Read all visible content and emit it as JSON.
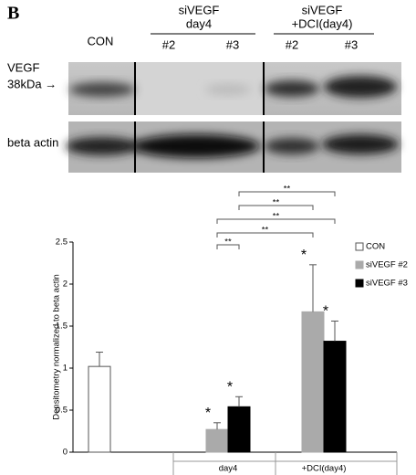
{
  "figure": {
    "panel": "B",
    "lanes": [
      "CON",
      "#2",
      "#3",
      "#2",
      "#3"
    ],
    "groups": [
      [
        "siVEGF",
        "day4"
      ],
      [
        "siVEGF",
        "+DCI(day4)"
      ]
    ],
    "rows": [
      "VEGF",
      "38kDa →",
      "beta actin"
    ]
  },
  "chart_data": {
    "type": "bar",
    "ylabel": "Densitometry normalized to beta actin",
    "categories": [
      null,
      "day4",
      "+DCI(day4)"
    ],
    "series": [
      {
        "name": "CON",
        "color": "#ffffff",
        "values": [
          1.02,
          null,
          null
        ],
        "errors": [
          0.17,
          null,
          null
        ]
      },
      {
        "name": "siVEGF #2",
        "color": "#aaaaaa",
        "values": [
          null,
          0.27,
          1.67
        ],
        "errors": [
          null,
          0.08,
          0.56
        ]
      },
      {
        "name": "siVEGF #3",
        "color": "#000000",
        "values": [
          null,
          0.54,
          1.32
        ],
        "errors": [
          null,
          0.12,
          0.24
        ]
      }
    ],
    "ylim": [
      0,
      2.5
    ],
    "yticks": [
      0,
      0.5,
      1,
      1.5,
      2,
      2.5
    ],
    "annotations": [
      "*",
      "*",
      "*",
      "*",
      "**",
      "**",
      "**",
      "**",
      "**"
    ],
    "legend": "right"
  }
}
